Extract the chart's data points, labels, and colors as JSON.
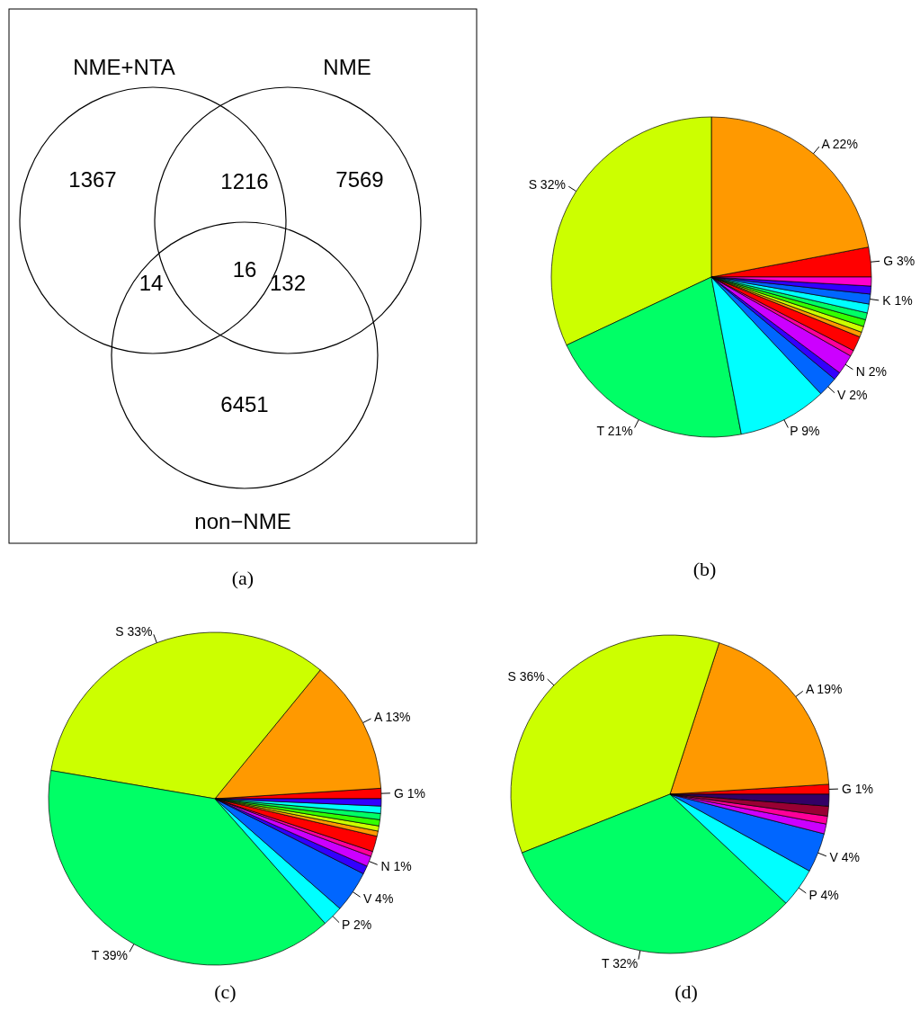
{
  "chart_data": [
    {
      "type": "other",
      "categories": [
        "NME+NTA",
        "NME",
        "non−NME"
      ],
      "annotations": [
        "1367",
        "1216",
        "7569",
        "14",
        "16",
        "132",
        "6451",
        "(a)"
      ]
    },
    {
      "type": "pie",
      "annotations": [
        "(b)"
      ],
      "categories": [
        "G",
        "A",
        "S",
        "T",
        "P",
        "V",
        null,
        "N",
        null,
        null,
        null,
        null,
        null,
        null,
        null,
        "K",
        null,
        null
      ],
      "value_labels": [
        "3%",
        "22%",
        "32%",
        "21%",
        "9%",
        "2%",
        null,
        "2%",
        null,
        null,
        null,
        null,
        null,
        null,
        null,
        "1%",
        null,
        null
      ],
      "values": [
        3,
        22,
        32,
        21,
        9,
        2,
        0.8,
        2,
        0.6,
        1.5,
        0.5,
        0.6,
        0.7,
        0.7,
        0.9,
        1,
        0.8,
        0.9
      ],
      "colors": [
        "#ff0000",
        "#ff9900",
        "#ccff00",
        "#00ff66",
        "#00ffff",
        "#0066ff",
        "#3300ff",
        "#cc00ff",
        "#ff0099",
        "#ff0000",
        "#ff9900",
        "#ccff00",
        "#33ff00",
        "#00ff66",
        "#00ffff",
        "#0066ff",
        "#3300ff",
        "#ff00cc"
      ]
    },
    {
      "type": "pie",
      "annotations": [
        "(c)"
      ],
      "categories": [
        "G",
        "A",
        "S",
        "T",
        "P",
        "V",
        null,
        "N",
        null,
        null,
        null,
        null,
        null,
        null,
        null,
        null
      ],
      "value_labels": [
        "1%",
        "13%",
        "33%",
        "39%",
        "2%",
        "4%",
        null,
        "1%",
        null,
        null,
        null,
        null,
        null,
        null,
        null,
        null
      ],
      "values": [
        1,
        13,
        33,
        39,
        2,
        4,
        0.8,
        1,
        0.5,
        1.5,
        0.5,
        0.5,
        0.6,
        0.6,
        0.7,
        0.7
      ],
      "colors": [
        "#ff0000",
        "#ff9900",
        "#ccff00",
        "#00ff66",
        "#00ffff",
        "#0066ff",
        "#3300ff",
        "#cc00ff",
        "#ff0099",
        "#ff0000",
        "#ff9900",
        "#ccff00",
        "#33ff00",
        "#00ff66",
        "#00ffff",
        "#3300ff"
      ]
    },
    {
      "type": "pie",
      "annotations": [
        "(d)"
      ],
      "categories": [
        "G",
        "A",
        "S",
        "T",
        "P",
        "V",
        null,
        null,
        null,
        null
      ],
      "value_labels": [
        "1%",
        "19%",
        "36%",
        "32%",
        "4%",
        "4%",
        null,
        null,
        null,
        null
      ],
      "values": [
        1,
        19,
        36,
        32,
        4,
        4,
        1,
        0.8,
        1,
        1.2
      ],
      "colors": [
        "#ff0000",
        "#ff9900",
        "#ccff00",
        "#00ff66",
        "#00ffff",
        "#0066ff",
        "#cc00ff",
        "#ff0099",
        "#990033",
        "#330066"
      ]
    }
  ]
}
